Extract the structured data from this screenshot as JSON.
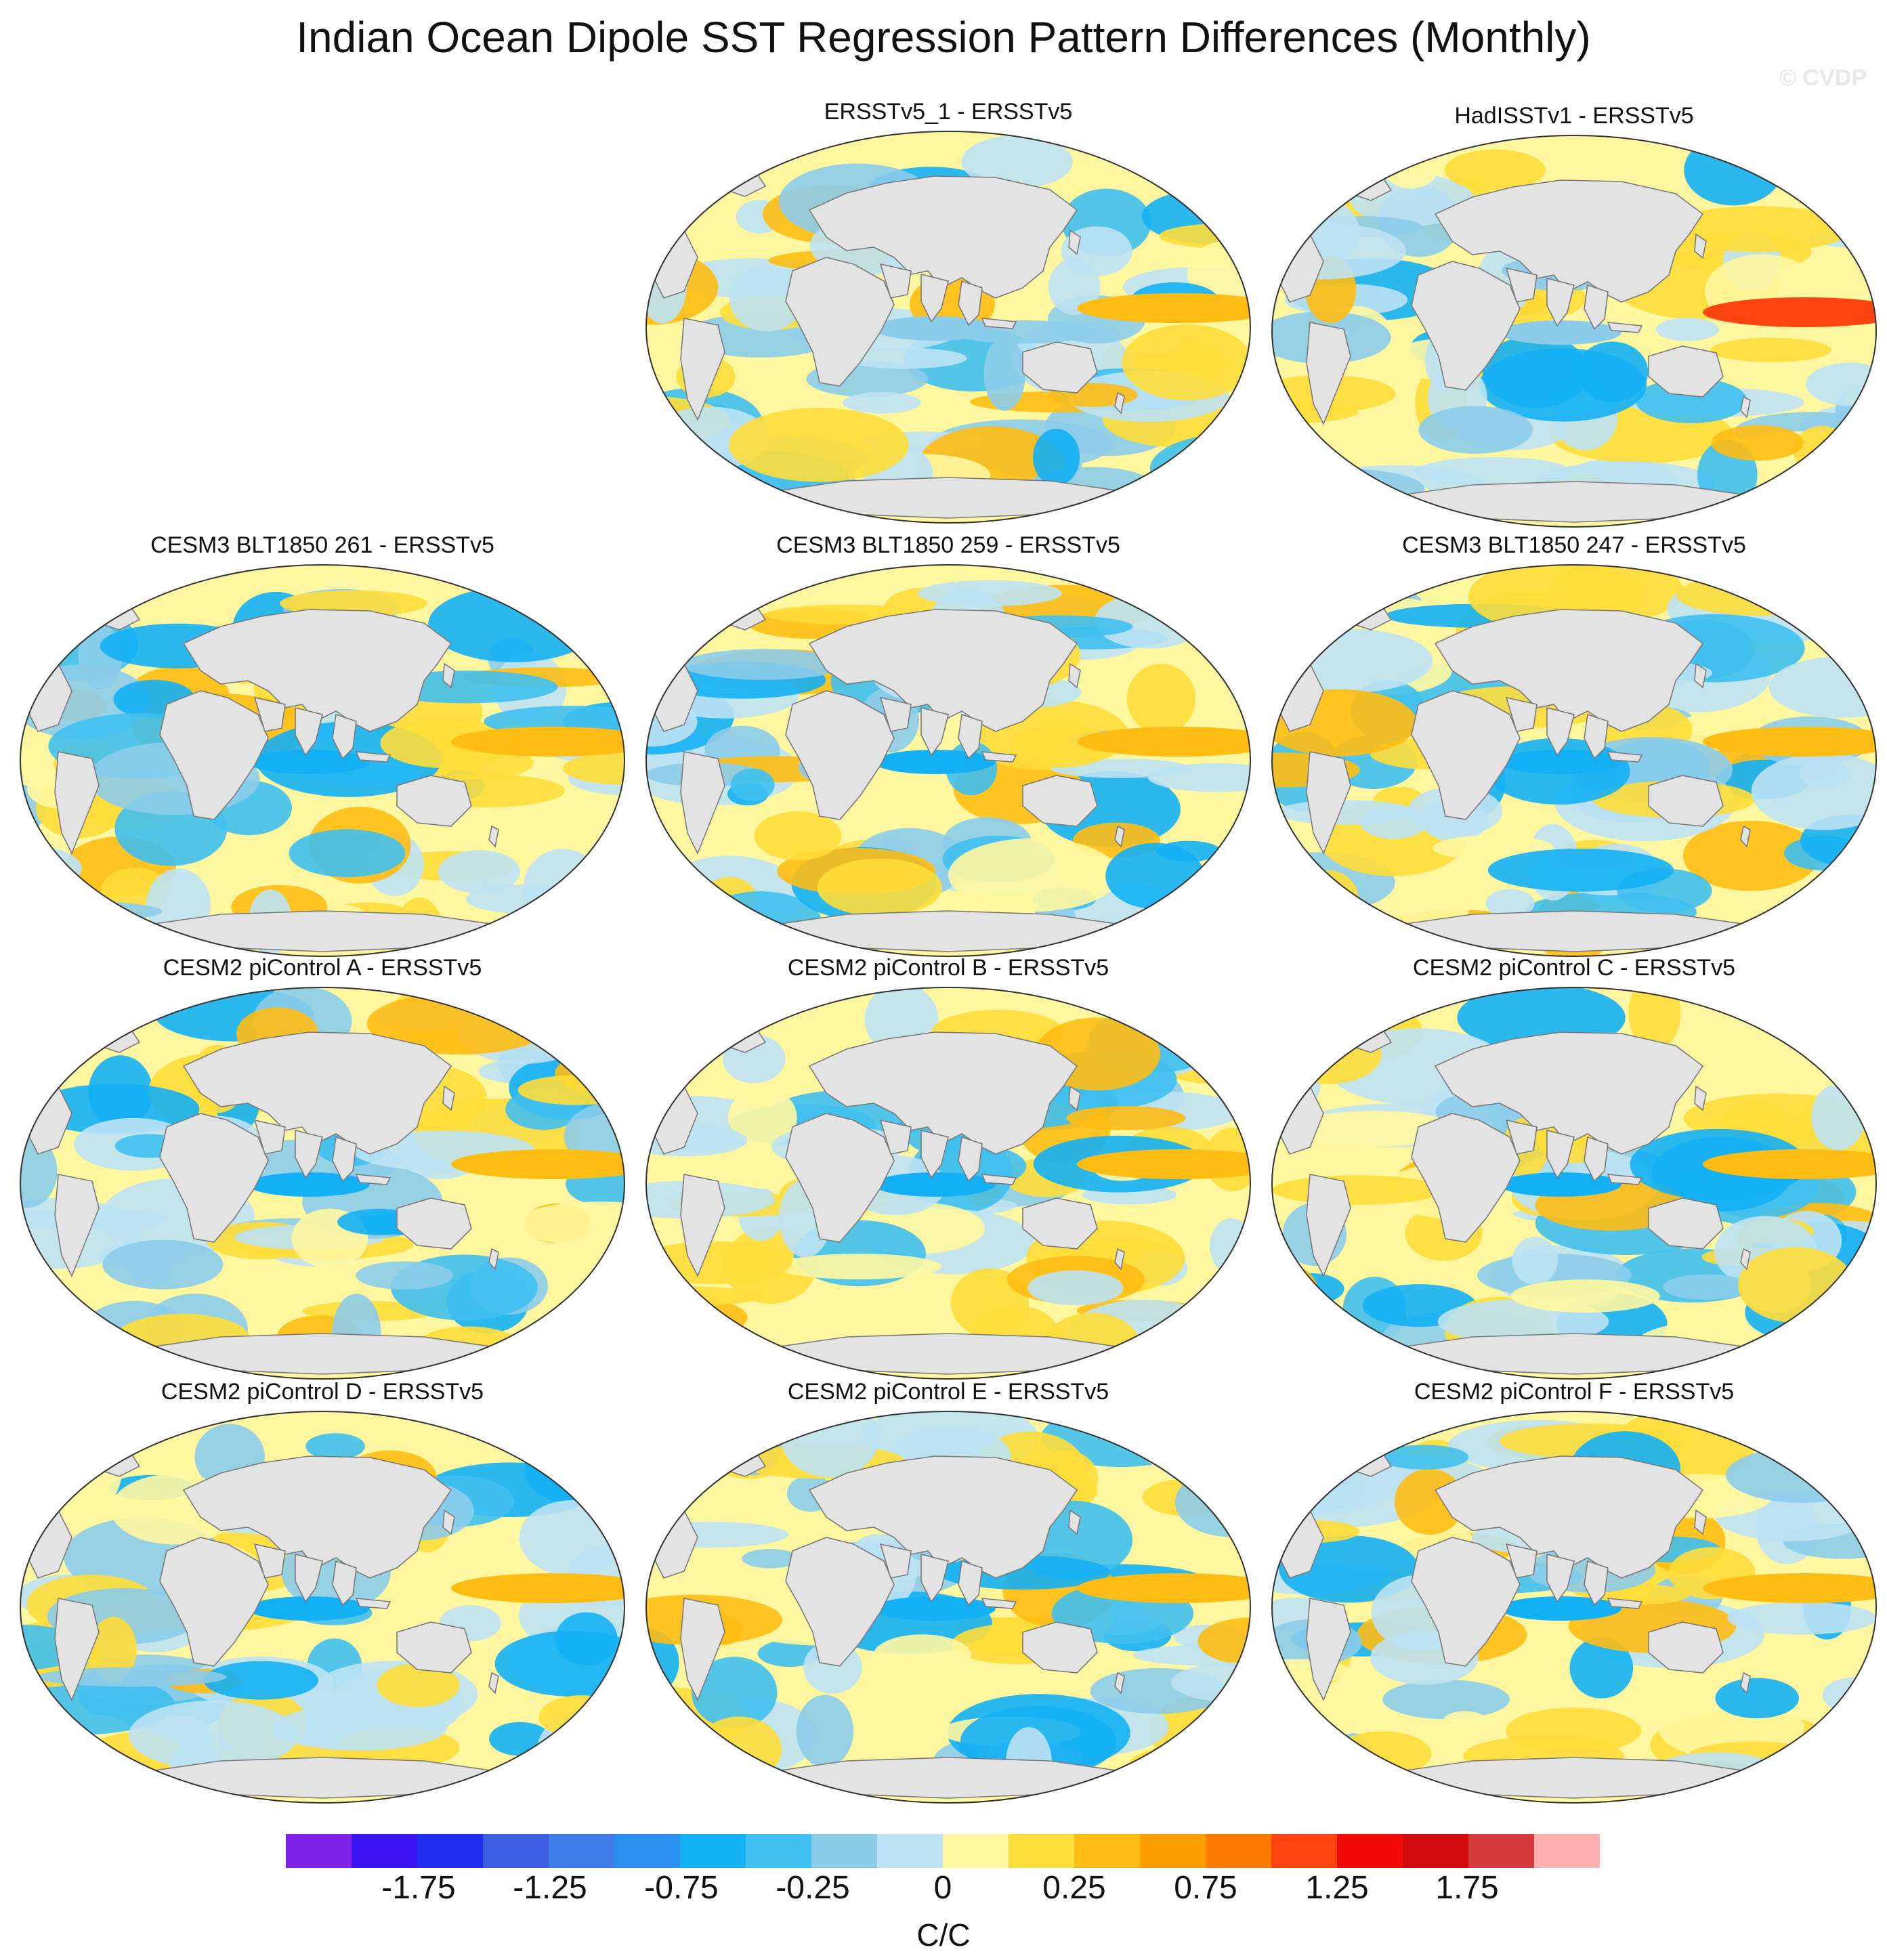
{
  "title": "Indian Ocean Dipole SST Regression Pattern Differences (Monthly)",
  "watermark": "© CVDP",
  "panels": [
    {
      "id": "p1",
      "title": "ERSSTv5_1 - ERSSTv5"
    },
    {
      "id": "p2",
      "title": "HadISSTv1 - ERSSTv5"
    },
    {
      "id": "p3",
      "title": "CESM3 BLT1850 261 - ERSSTv5"
    },
    {
      "id": "p4",
      "title": "CESM3 BLT1850 259 - ERSSTv5"
    },
    {
      "id": "p5",
      "title": "CESM3 BLT1850 247 - ERSSTv5"
    },
    {
      "id": "p6",
      "title": "CESM2 piControl A - ERSSTv5"
    },
    {
      "id": "p7",
      "title": "CESM2 piControl B - ERSSTv5"
    },
    {
      "id": "p8",
      "title": "CESM2 piControl C - ERSSTv5"
    },
    {
      "id": "p9",
      "title": "CESM2 piControl D - ERSSTv5"
    },
    {
      "id": "p10",
      "title": "CESM2 piControl E - ERSSTv5"
    },
    {
      "id": "p11",
      "title": "CESM2 piControl F - ERSSTv5"
    }
  ],
  "colorbar": {
    "units": "C/C",
    "tick_labels": [
      "-1.75",
      "-1.25",
      "-0.75",
      "-0.25",
      "0",
      "0.25",
      "0.75",
      "1.25",
      "1.75"
    ],
    "colors": [
      "#7f22e8",
      "#3a14f2",
      "#1f2ef0",
      "#3b5fe0",
      "#3f7ee8",
      "#2b8ff0",
      "#14b0f5",
      "#40c0f0",
      "#8ccceb",
      "#bce2f3",
      "#fff7a0",
      "#ffdd3a",
      "#ffbd14",
      "#ff9e00",
      "#ff7a00",
      "#ff4410",
      "#f50a0a",
      "#d00a0a",
      "#d63b3b",
      "#ffb0b0"
    ]
  },
  "map_colors": {
    "land": "#e3e3e3",
    "coast": "#7a7a7a",
    "ocean_base": "#fff7a0"
  }
}
